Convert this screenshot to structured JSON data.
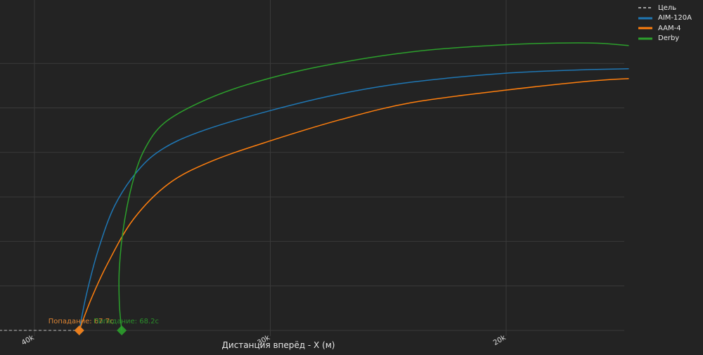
{
  "chart_data": {
    "type": "line",
    "title": "",
    "xlabel": "Дистанция вперёд - X (м)",
    "ylabel": "",
    "x_reversed": true,
    "xlim": [
      41700,
      14600
    ],
    "ylim": [
      -1800,
      36800
    ],
    "x_ticks": [
      {
        "value": 40000,
        "label": "40k"
      },
      {
        "value": 30000,
        "label": "30k"
      },
      {
        "value": 20000,
        "label": "20k"
      }
    ],
    "y_gridlines": [
      0,
      5000,
      10000,
      15000,
      20000,
      25000,
      30000
    ],
    "grid": true,
    "legend_position": "top-right",
    "series": [
      {
        "name": "Цель",
        "color": "#a0a0a0",
        "dash": "dashed",
        "points": [
          [
            41700,
            0
          ],
          [
            38100,
            0
          ]
        ]
      },
      {
        "name": "AIM-120A",
        "color": "#1f77b4",
        "dash": "solid",
        "points": [
          [
            38100,
            0
          ],
          [
            37800,
            4000
          ],
          [
            37300,
            9000
          ],
          [
            36600,
            14000
          ],
          [
            35600,
            18000
          ],
          [
            34500,
            20500
          ],
          [
            32800,
            22500
          ],
          [
            30000,
            24700
          ],
          [
            27000,
            26600
          ],
          [
            24000,
            27900
          ],
          [
            20000,
            28900
          ],
          [
            16500,
            29300
          ],
          [
            14800,
            29400
          ]
        ]
      },
      {
        "name": "AAM-4",
        "color": "#ff7f0e",
        "dash": "solid",
        "points": [
          [
            38100,
            0
          ],
          [
            37600,
            3500
          ],
          [
            36900,
            7500
          ],
          [
            35800,
            12500
          ],
          [
            34300,
            16500
          ],
          [
            32500,
            19000
          ],
          [
            30000,
            21300
          ],
          [
            27000,
            23700
          ],
          [
            24000,
            25600
          ],
          [
            20000,
            27000
          ],
          [
            16500,
            28000
          ],
          [
            14800,
            28300
          ]
        ]
      },
      {
        "name": "Derby",
        "color": "#2ca02c",
        "dash": "solid",
        "points": [
          [
            36300,
            0
          ],
          [
            36400,
            3000
          ],
          [
            36400,
            7000
          ],
          [
            36200,
            12000
          ],
          [
            35800,
            17000
          ],
          [
            35300,
            20500
          ],
          [
            34500,
            23300
          ],
          [
            33000,
            25600
          ],
          [
            31000,
            27600
          ],
          [
            28000,
            29600
          ],
          [
            24000,
            31300
          ],
          [
            20000,
            32100
          ],
          [
            16500,
            32300
          ],
          [
            14800,
            32000
          ]
        ]
      }
    ],
    "markers": [
      {
        "series": "AIM-120A",
        "x": 38100,
        "y": 0,
        "color": "#1f77b4",
        "symbol": "diamond",
        "label": "Попадание: 62.7с",
        "label_color": "#1f77b4"
      },
      {
        "series": "AAM-4",
        "x": 38100,
        "y": 0,
        "color": "#ff7f0e",
        "symbol": "diamond",
        "label": "Попадание: 67.7с",
        "label_color": "#ff7f0e"
      },
      {
        "series": "Derby",
        "x": 36300,
        "y": 0,
        "color": "#2ca02c",
        "symbol": "diamond",
        "label": "Попадание: 68.2с",
        "label_color": "#2ca02c"
      }
    ]
  },
  "legend": {
    "items": [
      {
        "label": "Цель",
        "color": "#a0a0a0",
        "dash": "dashed"
      },
      {
        "label": "AIM-120A",
        "color": "#1f77b4",
        "dash": "solid"
      },
      {
        "label": "AAM-4",
        "color": "#ff7f0e",
        "dash": "solid"
      },
      {
        "label": "Derby",
        "color": "#2ca02c",
        "dash": "solid"
      }
    ]
  }
}
